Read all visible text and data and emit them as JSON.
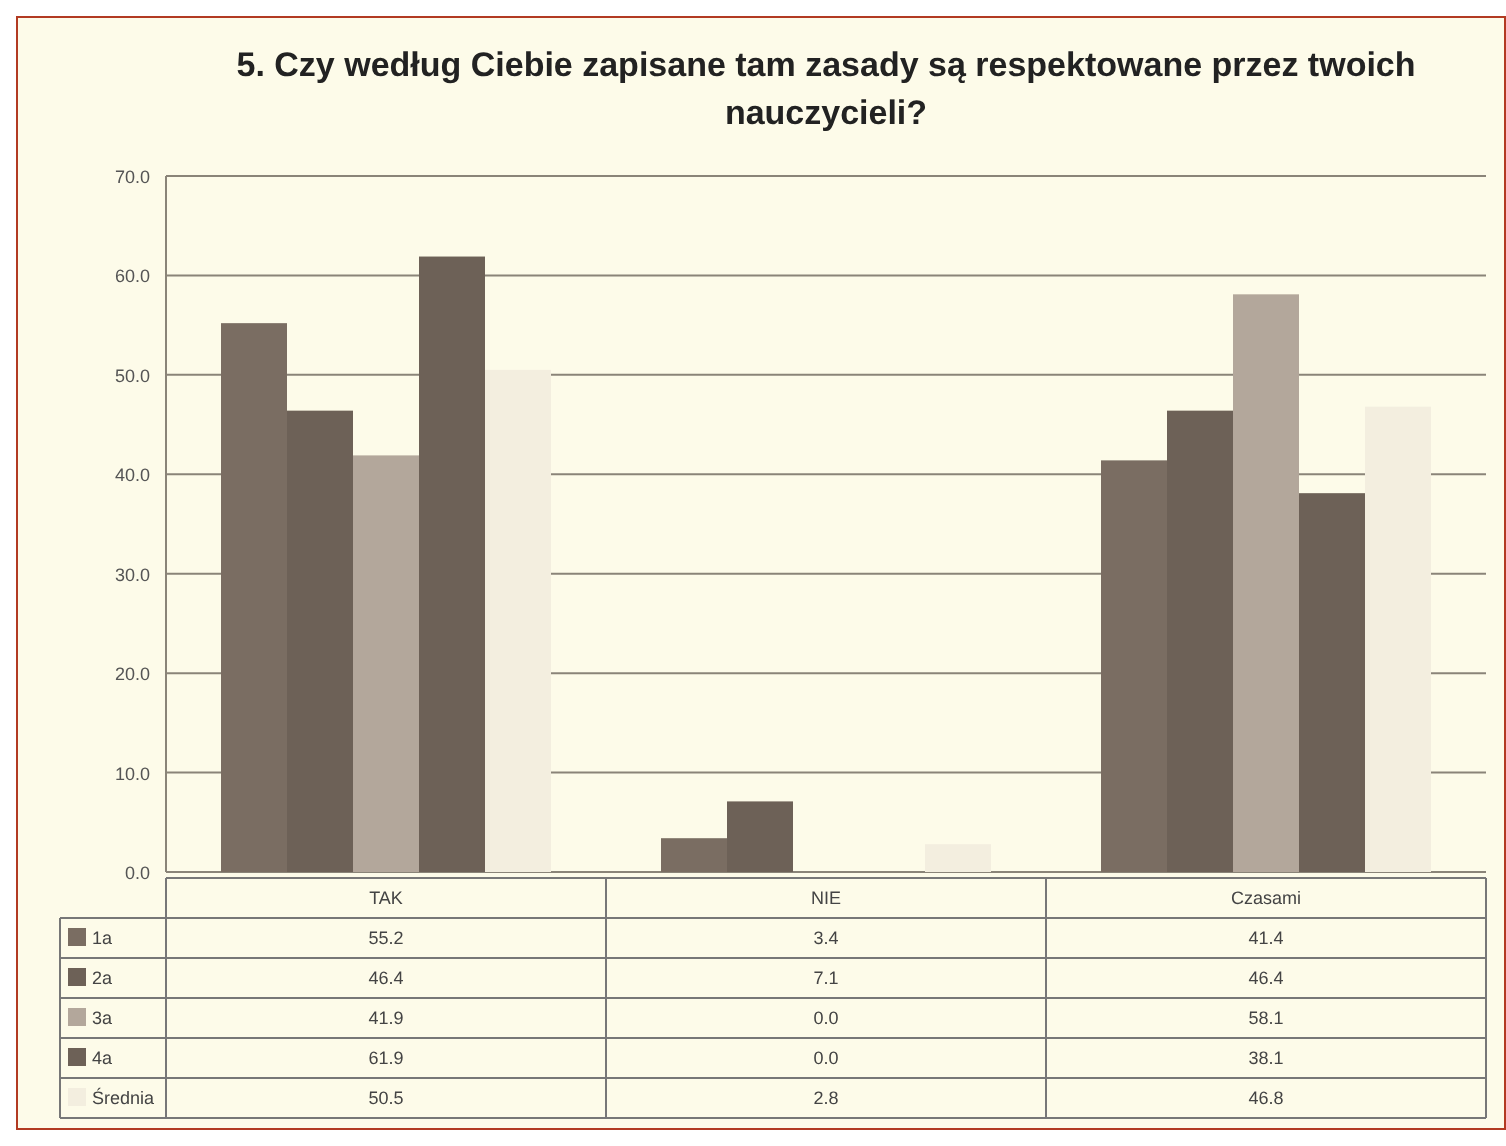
{
  "chart_data": {
    "type": "bar",
    "title": "5. Czy według Ciebie zapisane tam zasady są respektowane przez twoich nauczycieli?",
    "categories": [
      "TAK",
      "NIE",
      "Czasami"
    ],
    "series": [
      {
        "name": "1a",
        "color": "#7a6d62",
        "values": [
          55.2,
          3.4,
          41.4
        ],
        "value_labels": [
          "55.2",
          "3.4",
          "41.4"
        ]
      },
      {
        "name": "2a",
        "color": "#6d6157",
        "values": [
          46.4,
          7.1,
          46.4
        ],
        "value_labels": [
          "46.4",
          "7.1",
          "46.4"
        ]
      },
      {
        "name": "3a",
        "color": "#b3a79b",
        "values": [
          41.9,
          0,
          58.1
        ],
        "value_labels": [
          "41.9",
          "0.0",
          "58.1"
        ]
      },
      {
        "name": "4a",
        "color": "#6d6157",
        "values": [
          61.9,
          0,
          38.1
        ],
        "value_labels": [
          "61.9",
          "0.0",
          "38.1"
        ]
      },
      {
        "name": "Średnia",
        "color": "#f3eedf",
        "values": [
          50.5,
          2.8,
          46.8
        ],
        "value_labels": [
          "50.5",
          "2.8",
          "46.8"
        ]
      }
    ],
    "ylim": [
      0,
      70
    ],
    "yticks": [
      {
        "value": 0,
        "label": "0.0"
      },
      {
        "value": 10,
        "label": "10.0"
      },
      {
        "value": 20,
        "label": "20.0"
      },
      {
        "value": 30,
        "label": "30.0"
      },
      {
        "value": 40,
        "label": "40.0"
      },
      {
        "value": 50,
        "label": "50.0"
      },
      {
        "value": 60,
        "label": "60.0"
      },
      {
        "value": 70,
        "label": "70.0"
      }
    ],
    "grid": "y",
    "legend": "bottom"
  }
}
